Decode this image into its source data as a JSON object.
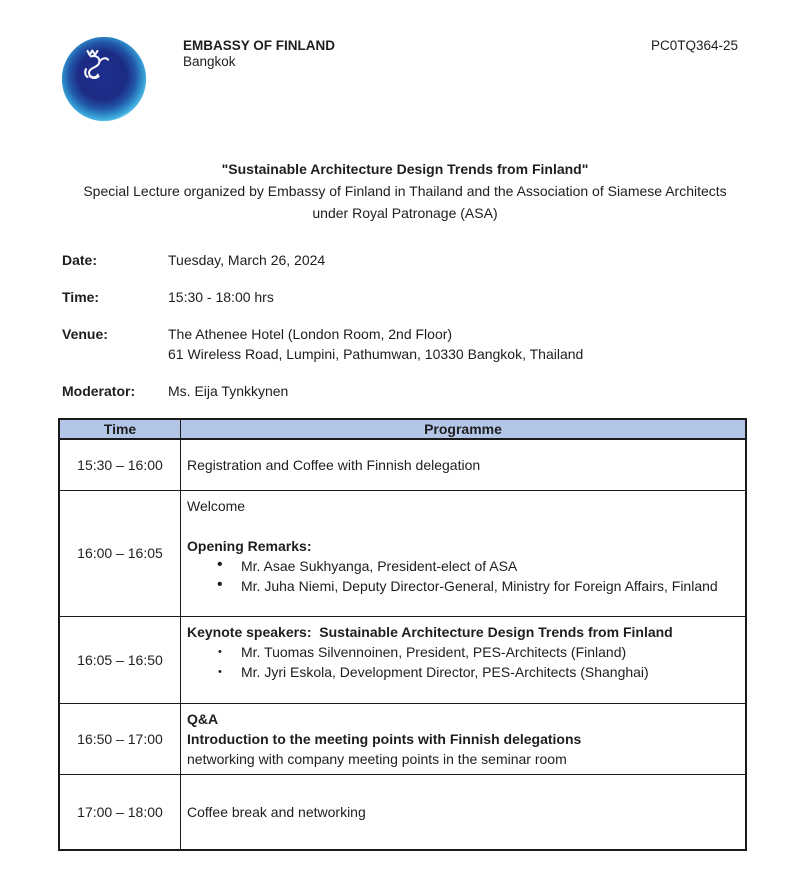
{
  "header": {
    "org_name": "EMBASSY OF FINLAND",
    "org_city": "Bangkok",
    "ref_code": "PC0TQ364-25",
    "logo": {
      "icon": "globe-with-finnish-lion",
      "outer_color": "#49b4e4",
      "inner_color": "#1c2b84",
      "lion_color": "#ffffff"
    }
  },
  "title": "\"Sustainable Architecture Design Trends from Finland\"",
  "subtitle": "Special Lecture organized by Embassy of Finland in Thailand and the Association of Siamese Architects under Royal Patronage (ASA)",
  "details": [
    {
      "label": "Date:",
      "lines": [
        "Tuesday, March 26, 2024"
      ]
    },
    {
      "label": "Time:",
      "lines": [
        "15:30 - 18:00 hrs"
      ]
    },
    {
      "label": "Venue:",
      "lines": [
        "The Athenee Hotel (London Room, 2nd Floor)",
        "61 Wireless Road, Lumpini, Pathumwan, 10330 Bangkok, Thailand"
      ]
    },
    {
      "label": "Moderator:",
      "lines": [
        "Ms. Eija Tynkkynen"
      ]
    }
  ],
  "table": {
    "header_bg": "#b4c6e7",
    "headers": [
      "Time",
      "Programme"
    ],
    "rows": [
      {
        "time": "15:30 – 16:00",
        "items": [
          {
            "text": "Registration and Coffee with Finnish delegation",
            "style": "normal"
          }
        ]
      },
      {
        "time": "16:00 – 16:05",
        "items": [
          {
            "text": "Welcome",
            "style": "normal"
          },
          {
            "text": "",
            "style": "spacer"
          },
          {
            "text": "Opening Remarks:",
            "style": "bold"
          },
          {
            "text": "Mr. Asae Sukhyanga, President-elect of ASA",
            "style": "bullet"
          },
          {
            "text": "Mr. Juha Niemi, Deputy Director-General, Ministry for Foreign Affairs, Finland",
            "style": "bullet"
          }
        ]
      },
      {
        "time": "16:05 – 16:50",
        "items": [
          {
            "text": "Keynote speakers:  Sustainable Architecture Design Trends from Finland",
            "style": "bold"
          },
          {
            "text": "Mr. Tuomas Silvennoinen, President, PES-Architects (Finland)",
            "style": "bullet-small"
          },
          {
            "text": "Mr. Jyri Eskola, Development Director, PES-Architects (Shanghai)",
            "style": "bullet-small"
          }
        ]
      },
      {
        "time": "16:50 – 17:00",
        "items": [
          {
            "text": "Q&A",
            "style": "bold"
          },
          {
            "text": "Introduction to the meeting points with Finnish delegations",
            "style": "bold"
          },
          {
            "text": "networking with company meeting points in the seminar room",
            "style": "normal"
          }
        ]
      },
      {
        "time": "17:00 – 18:00",
        "items": [
          {
            "text": "Coffee break and networking",
            "style": "normal"
          }
        ]
      }
    ]
  }
}
